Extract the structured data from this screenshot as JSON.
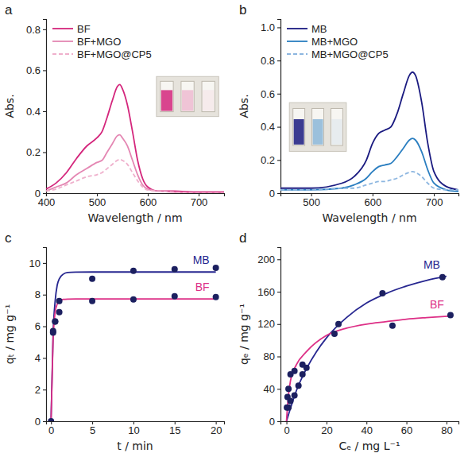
{
  "chart_data": [
    {
      "type": "line",
      "title": "a",
      "x_label": "Wavelength / nm",
      "y_label": "Abs.",
      "xlim": [
        400,
        750
      ],
      "xticks": [
        400,
        500,
        600,
        700
      ],
      "ylim": [
        0,
        0.85
      ],
      "yticks": [
        0,
        0.2,
        0.4,
        0.6,
        0.8
      ],
      "legend": "upper left",
      "series": [
        {
          "name": "BF",
          "color": "#d4267c",
          "line_style": "solid",
          "x": [
            400,
            420,
            440,
            460,
            480,
            500,
            510,
            520,
            530,
            540,
            545,
            550,
            560,
            570,
            580,
            590,
            600,
            620,
            650,
            700,
            750
          ],
          "values": [
            0.02,
            0.05,
            0.1,
            0.17,
            0.23,
            0.27,
            0.3,
            0.37,
            0.45,
            0.52,
            0.53,
            0.51,
            0.43,
            0.3,
            0.16,
            0.07,
            0.03,
            0.01,
            0.01,
            0.005,
            0.005
          ]
        },
        {
          "name": "BF+MGO",
          "color": "#e487b3",
          "line_style": "solid",
          "x": [
            400,
            420,
            440,
            460,
            480,
            500,
            510,
            520,
            530,
            540,
            545,
            550,
            560,
            570,
            580,
            590,
            600,
            620,
            650,
            700,
            750
          ],
          "values": [
            0.01,
            0.03,
            0.05,
            0.09,
            0.12,
            0.15,
            0.16,
            0.2,
            0.24,
            0.28,
            0.285,
            0.27,
            0.23,
            0.16,
            0.09,
            0.04,
            0.02,
            0.01,
            0.005,
            0,
            0
          ]
        },
        {
          "name": "BF+MGO@CP5",
          "color": "#efb0cc",
          "line_style": "dashed",
          "x": [
            400,
            420,
            440,
            460,
            480,
            500,
            510,
            520,
            530,
            540,
            545,
            550,
            560,
            570,
            580,
            590,
            600,
            620,
            650,
            700,
            750
          ],
          "values": [
            0.01,
            0.02,
            0.04,
            0.06,
            0.08,
            0.09,
            0.1,
            0.12,
            0.14,
            0.16,
            0.165,
            0.16,
            0.14,
            0.1,
            0.06,
            0.03,
            0.015,
            0.01,
            0.005,
            0,
            0
          ]
        }
      ]
    },
    {
      "type": "line",
      "title": "b",
      "x_label": "Wavelength / nm",
      "y_label": "Abs.",
      "xlim": [
        450,
        740
      ],
      "xticks": [
        500,
        600,
        700
      ],
      "ylim": [
        0,
        1.05
      ],
      "yticks": [
        0,
        0.2,
        0.4,
        0.6,
        0.8,
        {
          "value": 1,
          "label": "1.0"
        }
      ],
      "legend": "upper left",
      "series": [
        {
          "name": "MB",
          "color": "#1a1a80",
          "line_style": "solid",
          "x": [
            450,
            500,
            550,
            570,
            590,
            600,
            610,
            620,
            630,
            640,
            650,
            660,
            665,
            670,
            680,
            690,
            700,
            720,
            740
          ],
          "values": [
            0.03,
            0.03,
            0.06,
            0.1,
            0.2,
            0.3,
            0.36,
            0.38,
            0.4,
            0.48,
            0.6,
            0.71,
            0.73,
            0.71,
            0.55,
            0.3,
            0.13,
            0.04,
            0.02
          ]
        },
        {
          "name": "MB+MGO",
          "color": "#2a7ec0",
          "line_style": "solid",
          "x": [
            450,
            500,
            550,
            570,
            590,
            600,
            610,
            620,
            630,
            640,
            650,
            660,
            665,
            670,
            680,
            690,
            700,
            720,
            740
          ],
          "values": [
            0.02,
            0.02,
            0.03,
            0.05,
            0.09,
            0.13,
            0.16,
            0.17,
            0.18,
            0.22,
            0.27,
            0.32,
            0.33,
            0.32,
            0.25,
            0.14,
            0.06,
            0.02,
            0.01
          ]
        },
        {
          "name": "MB+MGO@CP5",
          "color": "#8cb6e0",
          "line_style": "dashed",
          "x": [
            450,
            500,
            550,
            570,
            590,
            600,
            610,
            620,
            630,
            640,
            650,
            660,
            665,
            670,
            680,
            690,
            700,
            720,
            740
          ],
          "values": [
            0.02,
            0.02,
            0.03,
            0.03,
            0.05,
            0.06,
            0.07,
            0.07,
            0.08,
            0.09,
            0.11,
            0.125,
            0.13,
            0.125,
            0.1,
            0.06,
            0.03,
            0.02,
            0.02
          ]
        }
      ]
    },
    {
      "type": "scatter",
      "title": "c",
      "x_label": "t / min",
      "y_label": "qₜ / mg g⁻¹",
      "xlim": [
        -0.6,
        21
      ],
      "xticks": [
        0,
        5,
        10,
        15,
        20
      ],
      "ylim": [
        0,
        11
      ],
      "yticks": [
        0,
        2,
        4,
        6,
        8,
        10
      ],
      "series": [
        {
          "name": "MB",
          "type": "line",
          "color": "#262690",
          "line_style": "solid",
          "x": [
            0,
            0.25,
            0.5,
            0.75,
            1,
            1.5,
            2,
            3,
            5,
            10,
            15,
            20
          ],
          "values": [
            0,
            5.5,
            7.6,
            8.6,
            9.0,
            9.3,
            9.4,
            9.42,
            9.43,
            9.43,
            9.43,
            9.43
          ]
        },
        {
          "name": "BF",
          "type": "line",
          "color": "#dd2f86",
          "line_style": "solid",
          "x": [
            0,
            0.25,
            0.5,
            0.75,
            1,
            1.5,
            2,
            3,
            5,
            10,
            15,
            20
          ],
          "values": [
            0,
            5.2,
            6.9,
            7.4,
            7.6,
            7.7,
            7.72,
            7.73,
            7.73,
            7.73,
            7.73,
            7.73
          ]
        },
        {
          "type": "scatter",
          "color": "#1c2060",
          "marker": "circle",
          "x": [
            0,
            0.25,
            0.5,
            1,
            5,
            10,
            15,
            20
          ],
          "values": [
            0,
            5.7,
            6.3,
            7.6,
            9.0,
            9.5,
            9.6,
            9.7
          ]
        },
        {
          "type": "scatter",
          "color": "#1c2060",
          "marker": "circle",
          "x": [
            0.25,
            0.5,
            1,
            5,
            10,
            15,
            20
          ],
          "values": [
            5.6,
            6.3,
            6.9,
            7.6,
            7.7,
            7.9,
            7.85
          ]
        }
      ]
    },
    {
      "type": "scatter",
      "title": "d",
      "x_label": "Cₑ / mg L⁻¹",
      "y_label": "qₑ / mg g⁻¹",
      "xlim": [
        -3,
        86
      ],
      "xticks": [
        0,
        20,
        40,
        60,
        80
      ],
      "ylim": [
        0,
        215
      ],
      "yticks": [
        0,
        40,
        80,
        120,
        160,
        200
      ],
      "series": [
        {
          "name": "MB",
          "type": "line",
          "color": "#262690",
          "line_style": "solid",
          "x": [
            0,
            2,
            5,
            10,
            15,
            20,
            30,
            40,
            50,
            60,
            70,
            80
          ],
          "values": [
            0,
            16,
            38,
            65,
            86,
            103,
            128,
            146,
            158,
            167,
            174,
            179
          ]
        },
        {
          "name": "BF",
          "type": "line",
          "color": "#dd2f86",
          "line_style": "solid",
          "x": [
            0,
            0.5,
            1,
            2,
            5,
            10,
            20,
            30,
            40,
            50,
            60,
            70,
            82
          ],
          "values": [
            0,
            18,
            32,
            50,
            70,
            86,
            106,
            115,
            120,
            123,
            126,
            128,
            130
          ]
        },
        {
          "type": "scatter",
          "color": "#1c2060",
          "marker": "circle",
          "x": [
            1,
            2,
            4,
            6,
            8,
            10,
            24,
            26,
            48,
            78
          ],
          "values": [
            17,
            25,
            32,
            44,
            58,
            66,
            108,
            120,
            158,
            178
          ]
        },
        {
          "type": "scatter",
          "color": "#1c2060",
          "marker": "circle",
          "x": [
            0.2,
            0.5,
            1,
            2,
            4,
            8,
            53,
            82
          ],
          "values": [
            17,
            30,
            40,
            58,
            62,
            70,
            118,
            131
          ]
        }
      ]
    }
  ]
}
